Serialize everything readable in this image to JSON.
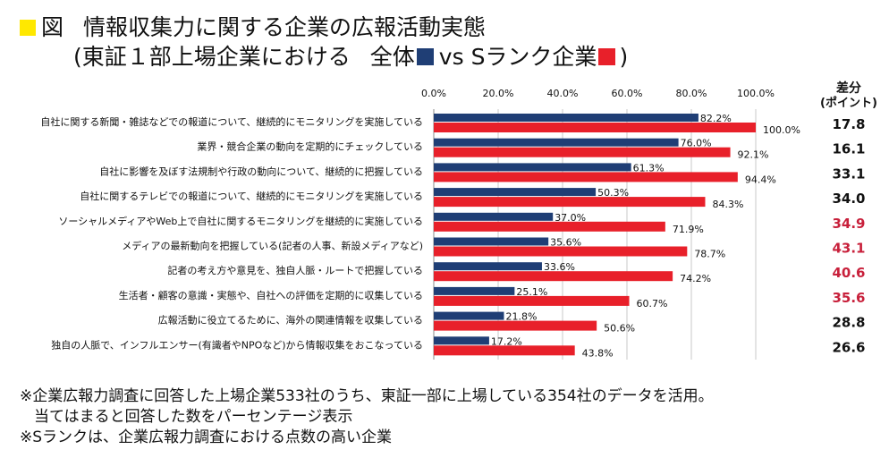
{
  "title": {
    "marker": "図",
    "line1": "情報収集力に関する企業の広報活動実態",
    "line2_prefix": "(東証１部上場企業における",
    "legend_all": "全体",
    "legend_vs": "vs",
    "legend_s": "Sランク企業",
    "line2_suffix": ")"
  },
  "colors": {
    "all": "#1f3e75",
    "s": "#e8202a",
    "marker": "#ffe800",
    "highlight": "#c8203b"
  },
  "notes": [
    "※企業広報力調査に回答した上場企業533社のうち、東証一部に上場している354社のデータを活用。",
    "当てはまると回答した数をパーセンテージ表示",
    "※Sランクは、企業広報力調査における点数の高い企業"
  ],
  "chart_data": {
    "type": "bar",
    "orientation": "horizontal",
    "xlim": [
      0,
      100
    ],
    "x_ticks": [
      "0.0%",
      "20.0%",
      "40.0%",
      "60.0%",
      "80.0%",
      "100.0%"
    ],
    "diff_header_line1": "差分",
    "diff_header_line2": "(ポイント)",
    "categories": [
      "自社に関する新聞・雑誌などでの報道について、継続的にモニタリングを実施している",
      "業界・競合企業の動向を定期的にチェックしている",
      "自社に影響を及ぼす法規制や行政の動向について、継続的に把握している",
      "自社に関するテレビでの報道について、継続的にモニタリングを実施している",
      "ソーシャルメディアやWeb上で自社に関するモニタリングを継続的に実施している",
      "メディアの最新動向を把握している(記者の人事、新設メディアなど)",
      "記者の考え方や意見を、独自人脈・ルートで把握している",
      "生活者・顧客の意識・実態や、自社への評価を定期的に収集している",
      "広報活動に役立てるために、海外の関連情報を収集している",
      "独自の人脈で、インフルエンサー(有識者やNPOなど)から情報収集をおこなっている"
    ],
    "series": [
      {
        "values": [
          82.2,
          76.0,
          61.3,
          50.3,
          37.0,
          35.6,
          33.6,
          25.1,
          21.8,
          17.2
        ],
        "labels": [
          "82.2%",
          "76.0%",
          "61.3%",
          "50.3%",
          "37.0%",
          "35.6%",
          "33.6%",
          "25.1%",
          "21.8%",
          "17.2%"
        ]
      },
      {
        "values": [
          100.0,
          92.1,
          94.4,
          84.3,
          71.9,
          78.7,
          74.2,
          60.7,
          50.6,
          43.8
        ],
        "labels": [
          "100.0%",
          "92.1%",
          "94.4%",
          "84.3%",
          "71.9%",
          "78.7%",
          "74.2%",
          "60.7%",
          "50.6%",
          "43.8%"
        ]
      }
    ],
    "diff": [
      "17.8",
      "16.1",
      "33.1",
      "34.0",
      "34.9",
      "43.1",
      "40.6",
      "35.6",
      "28.8",
      "26.6"
    ],
    "diff_highlight": [
      false,
      false,
      false,
      false,
      true,
      true,
      true,
      true,
      false,
      false
    ],
    "grid": true
  }
}
